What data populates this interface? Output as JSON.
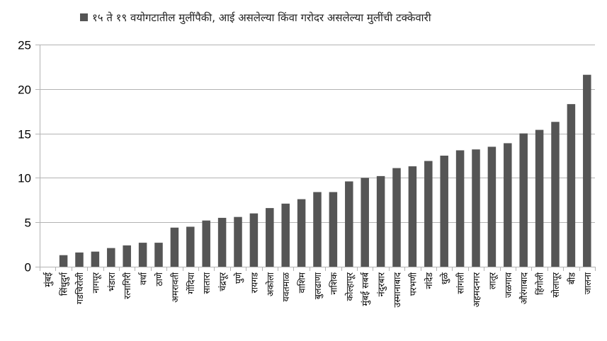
{
  "chart_data": {
    "type": "bar",
    "legend": "१५ ते १९ वयोगटातील मुलींपैकी, आई असलेल्या किंवा गरोदर असलेल्या मुलींची टक्केवारी",
    "legend_position": "top",
    "categories": [
      "मुंबई",
      "सिंधुदुर्ग",
      "गडचिरोली",
      "नागपूर",
      "भंडारा",
      "रत्नागिरी",
      "वर्धा",
      "ठाणे",
      "अमरावती",
      "गोंदिया",
      "सातारा",
      "चंद्रपूर",
      "पुणे",
      "रायगड",
      "अकोला",
      "यवतमाळ",
      "वाशिम",
      "बुलढाणा",
      "नाशिक",
      "कोल्हापूर",
      "मुंबई सबर्ब",
      "नंदुरबार",
      "उस्मानाबाद",
      "परभणी",
      "नांदेड",
      "धुळे",
      "सांगली",
      "अहमदनगर",
      "लातूर",
      "जळगाव",
      "औरंगाबाद",
      "हिंगोली",
      "सोलापूर",
      "बीड",
      "जालना"
    ],
    "values": [
      0,
      1.3,
      1.6,
      1.7,
      2.1,
      2.4,
      2.7,
      2.7,
      4.4,
      4.5,
      5.2,
      5.5,
      5.6,
      6.0,
      6.6,
      7.1,
      7.6,
      8.4,
      8.4,
      9.6,
      10.0,
      10.2,
      11.1,
      11.3,
      11.9,
      12.5,
      13.1,
      13.2,
      13.5,
      13.9,
      15.0,
      15.4,
      16.3,
      18.3,
      21.6
    ],
    "ylim": [
      0,
      25
    ],
    "yticks": [
      0,
      5,
      10,
      15,
      20,
      25
    ],
    "grid": "horizontal",
    "bar_color": "#555555"
  }
}
